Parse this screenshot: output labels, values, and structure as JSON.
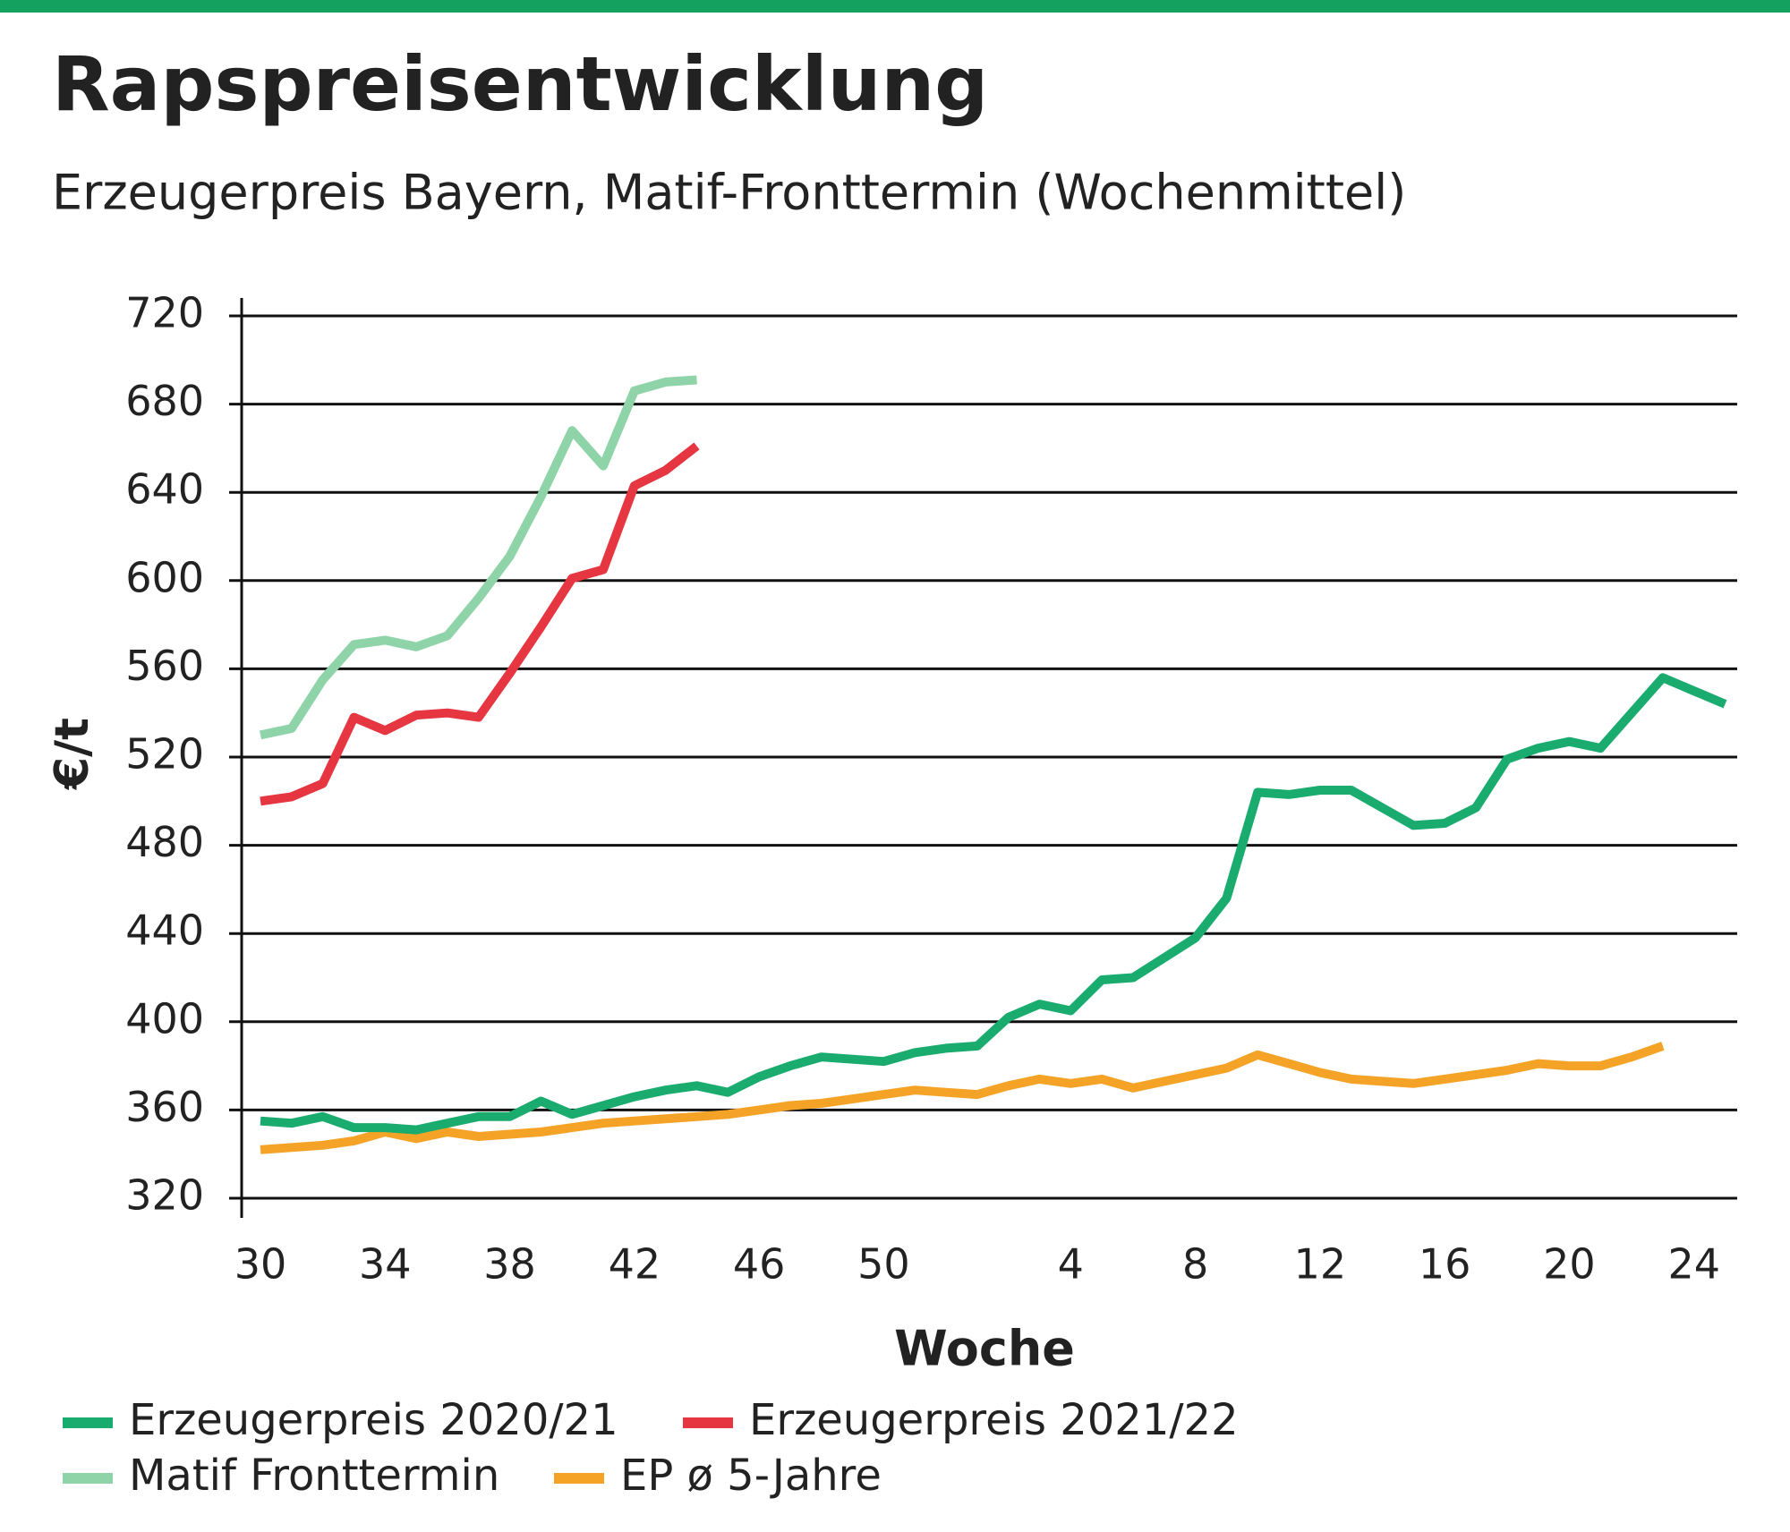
{
  "chart_data": {
    "type": "line",
    "title": "Rapspreisentwicklung",
    "subtitle": "Erzeugerpreis Bayern, Matif-Fronttermin (Wochenmittel)",
    "y_label": "€/t",
    "x_label": "Woche",
    "categories": [
      "30",
      null,
      null,
      null,
      "34",
      null,
      null,
      null,
      "38",
      null,
      null,
      null,
      "42",
      null,
      null,
      null,
      "46",
      null,
      null,
      null,
      "50",
      null,
      null,
      null,
      null,
      null,
      "4",
      null,
      null,
      null,
      "8",
      null,
      null,
      null,
      "12",
      null,
      null,
      null,
      "16",
      null,
      null,
      null,
      "20",
      null,
      null,
      null,
      "24",
      null
    ],
    "ylim": [
      320,
      720
    ],
    "yticks": [
      320,
      360,
      400,
      440,
      480,
      520,
      560,
      600,
      640,
      680,
      720
    ],
    "grid": true,
    "series": [
      {
        "name": "Erzeugerpreis 2020/21",
        "color": "#1aab6e",
        "values": [
          355,
          354,
          357,
          352,
          352,
          351,
          354,
          357,
          357,
          364,
          358,
          362,
          366,
          369,
          371,
          368,
          375,
          380,
          384,
          383,
          382,
          386,
          388,
          389,
          402,
          408,
          405,
          419,
          420,
          429,
          438,
          456,
          504,
          503,
          505,
          505,
          497,
          489,
          490,
          497,
          519,
          524,
          527,
          524,
          540,
          556,
          550,
          544
        ]
      },
      {
        "name": "Erzeugerpreis 2021/22",
        "color": "#e63641",
        "values": [
          500,
          502,
          508,
          538,
          532,
          539,
          540,
          538,
          558,
          579,
          601,
          605,
          643,
          650,
          661,
          null,
          null,
          null,
          null,
          null,
          null,
          null,
          null,
          null,
          null,
          null,
          null,
          null,
          null,
          null,
          null,
          null,
          null,
          null,
          null,
          null,
          null,
          null,
          null,
          null,
          null,
          null,
          null,
          null,
          null,
          null,
          null,
          null
        ]
      },
      {
        "name": "Matif Fronttermin",
        "color": "#8fd3a8",
        "values": [
          530,
          533,
          555,
          571,
          573,
          570,
          575,
          592,
          611,
          638,
          668,
          652,
          686,
          690,
          691,
          null,
          null,
          null,
          null,
          null,
          null,
          null,
          null,
          null,
          null,
          null,
          null,
          null,
          null,
          null,
          null,
          null,
          null,
          null,
          null,
          null,
          null,
          null,
          null,
          null,
          null,
          null,
          null,
          null,
          null,
          null,
          null,
          null
        ]
      },
      {
        "name": "EP ø 5-Jahre",
        "color": "#f5a327",
        "values": [
          342,
          343,
          344,
          346,
          350,
          347,
          350,
          348,
          349,
          350,
          352,
          354,
          355,
          356,
          357,
          358,
          360,
          362,
          363,
          365,
          367,
          369,
          368,
          367,
          371,
          374,
          372,
          374,
          370,
          373,
          376,
          379,
          385,
          381,
          377,
          374,
          373,
          372,
          374,
          376,
          378,
          381,
          380,
          380,
          384,
          389,
          null,
          null
        ]
      }
    ]
  }
}
